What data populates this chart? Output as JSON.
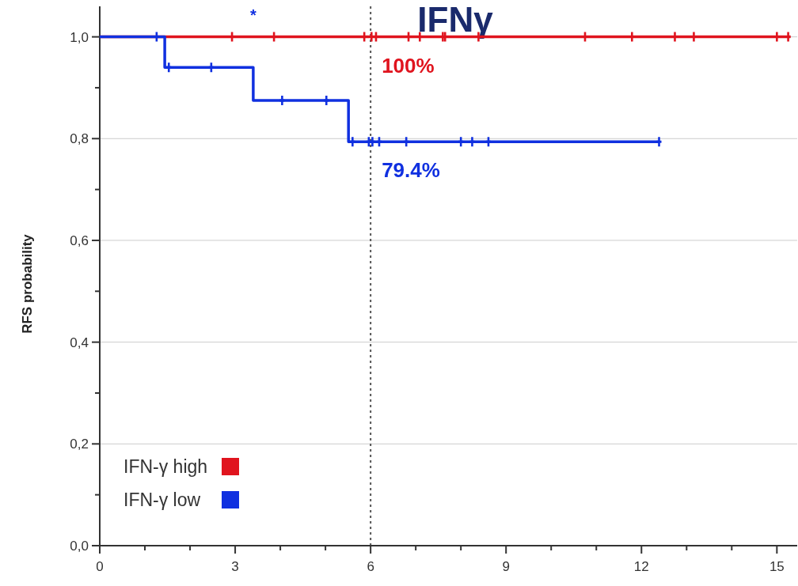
{
  "chart_data": {
    "type": "step",
    "title": "IFNγ",
    "ylabel": "RFS probability",
    "xlim": [
      0,
      15.45
    ],
    "ylim": [
      0,
      1.06
    ],
    "xticks": [
      0,
      {
        "value": 1,
        "label": null
      },
      {
        "value": 2,
        "label": null
      },
      3,
      {
        "value": 4,
        "label": null
      },
      {
        "value": 5,
        "label": null
      },
      6,
      {
        "value": 7,
        "label": null
      },
      {
        "value": 8,
        "label": null
      },
      9,
      {
        "value": 10,
        "label": null
      },
      {
        "value": 11,
        "label": null
      },
      12,
      {
        "value": 13,
        "label": null
      },
      {
        "value": 14,
        "label": null
      },
      15
    ],
    "yticks": [
      {
        "value": 0,
        "label": "0,0"
      },
      {
        "value": 0.1,
        "label": null
      },
      {
        "value": 0.2,
        "label": "0,2"
      },
      {
        "value": 0.3,
        "label": null
      },
      {
        "value": 0.4,
        "label": "0,4"
      },
      {
        "value": 0.5,
        "label": null
      },
      {
        "value": 0.6,
        "label": "0,6"
      },
      {
        "value": 0.7,
        "label": null
      },
      {
        "value": 0.8,
        "label": "0,8"
      },
      {
        "value": 0.9,
        "label": null
      },
      {
        "value": 1,
        "label": "1,0"
      }
    ],
    "grid": "y",
    "legend": "bottom left",
    "series": [
      {
        "name": "IFN-γ high",
        "color": "#e0141e",
        "x": [
          0,
          15.3
        ],
        "values": [
          1,
          1
        ]
      },
      {
        "name": "IFN-γ low",
        "color": "#1030e0",
        "x": [
          0,
          1.44,
          3.4,
          5.51,
          12.39
        ],
        "values": [
          1,
          0.94,
          0.875,
          0.794,
          0.794
        ]
      },
      {
        "type": "scatter",
        "marker": "cross",
        "color": "#e0141e",
        "x": [
          2.93,
          3.86,
          5.86,
          6.02,
          6.12,
          6.84,
          7.09,
          7.6,
          7.65,
          8.39,
          10.75,
          11.79,
          12.74,
          13.16,
          15.0,
          15.25
        ],
        "values": [
          1,
          1,
          1,
          1,
          1,
          1,
          1,
          1,
          1,
          1,
          1,
          1,
          1,
          1,
          1,
          1
        ]
      },
      {
        "type": "scatter",
        "marker": "cross",
        "color": "#1030e0",
        "x": [
          1.26,
          1.53,
          2.47,
          4.04,
          5.02,
          5.6,
          5.96,
          6.04,
          6.19,
          6.79,
          8.0,
          8.25,
          8.61,
          12.39
        ],
        "values": [
          1,
          0.94,
          0.94,
          0.875,
          0.875,
          0.794,
          0.794,
          0.794,
          0.794,
          0.794,
          0.794,
          0.794,
          0.794,
          0.794
        ]
      }
    ],
    "ref_lines": [
      {
        "axis": "x",
        "value": 6,
        "line_style": "dotted",
        "color": "#555555"
      }
    ],
    "annotations": [
      "*",
      {
        "text": "100%",
        "x": 6,
        "y": 1
      },
      {
        "text": "79.4%",
        "x": 6,
        "y": 0.794
      }
    ]
  }
}
